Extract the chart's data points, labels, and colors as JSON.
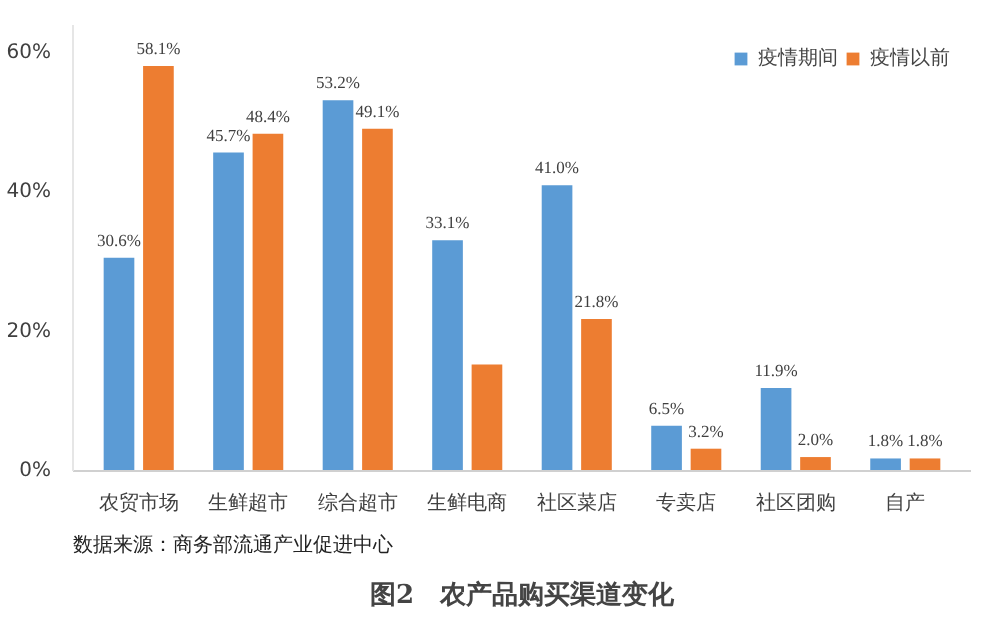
{
  "chart_data": {
    "type": "bar",
    "title": "图2　农产品购买渠道变化",
    "annotations": [
      "数据来源：商务部流通产业促进中心"
    ],
    "categories": [
      "农贸市场",
      "生鲜超市",
      "综合超市",
      "生鲜电商",
      "社区菜店",
      "专卖店",
      "社区团购",
      "自产"
    ],
    "series": [
      {
        "name": "疫情期间",
        "color": "#5b9bd5",
        "values": [
          30.6,
          45.7,
          53.2,
          33.1,
          41.0,
          6.5,
          11.9,
          1.8
        ],
        "value_labels": [
          "30.6%",
          "45.7%",
          "53.2%",
          "33.1%",
          "41.0%",
          "6.5%",
          "11.9%",
          "1.8%"
        ]
      },
      {
        "name": "疫情以前",
        "color": "#ed7d31",
        "values": [
          58.1,
          48.4,
          49.1,
          15.3,
          21.8,
          3.2,
          2.0,
          1.8
        ],
        "value_labels": [
          "58.1%",
          "48.4%",
          "49.1%",
          null,
          "21.8%",
          "3.2%",
          "2.0%",
          "1.8%"
        ]
      }
    ],
    "ylim": [
      0,
      64
    ],
    "yticks": [
      {
        "value": 0,
        "label": "0%"
      },
      {
        "value": 20,
        "label": "20%"
      },
      {
        "value": 40,
        "label": "40%"
      },
      {
        "value": 60,
        "label": "60%"
      }
    ],
    "grid": false,
    "legend": "top right"
  }
}
